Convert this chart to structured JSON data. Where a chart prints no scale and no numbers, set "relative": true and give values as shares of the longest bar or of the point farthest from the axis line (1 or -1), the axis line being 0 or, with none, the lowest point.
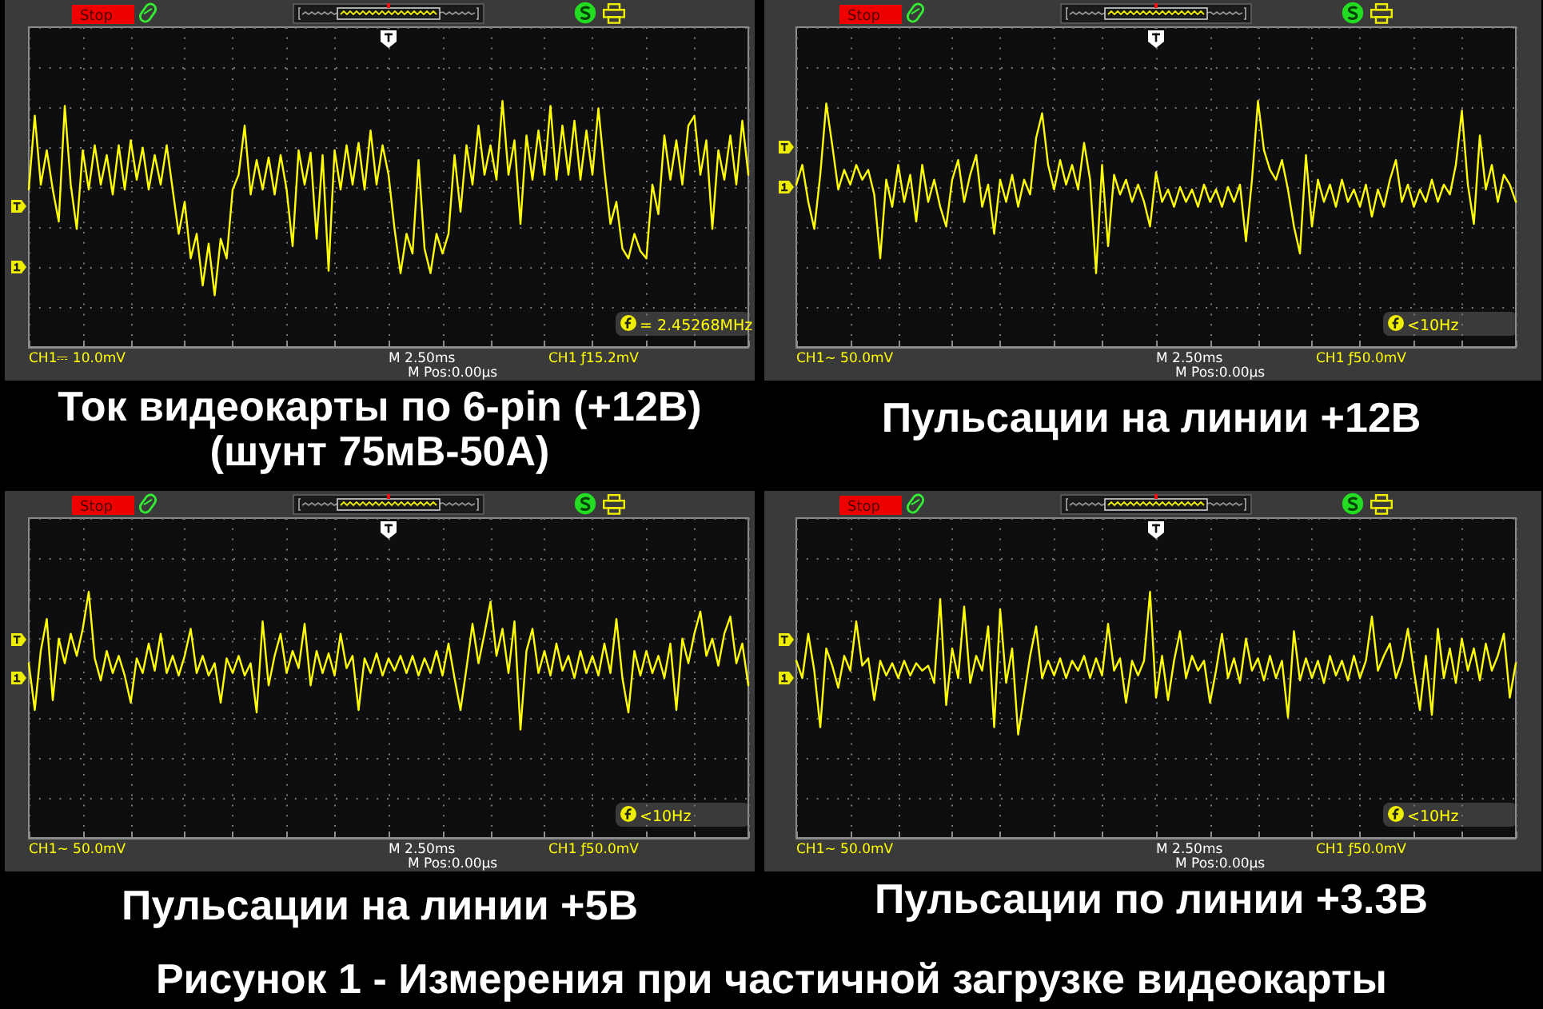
{
  "chart_data": [
    {
      "type": "line",
      "title": "Ток видеокарты по 6-pin (+12В)",
      "subtitle": "(шунт 75мВ-50А)",
      "relative": true,
      "grid": true,
      "marker": "none",
      "line_style": "solid",
      "categories": [
        null,
        null,
        null,
        null,
        null,
        null,
        null,
        null,
        null,
        null,
        null,
        null,
        null,
        null,
        null,
        null,
        null,
        null,
        null,
        null,
        null,
        null,
        null,
        null,
        null,
        null,
        null,
        null,
        null,
        null,
        null,
        null,
        null,
        null,
        null,
        null,
        null,
        null,
        null,
        null,
        null,
        null,
        null,
        null,
        null,
        null,
        null,
        null,
        null,
        null,
        null,
        null,
        null,
        null,
        null,
        null,
        null,
        null,
        null,
        null,
        null,
        null,
        null,
        null,
        null,
        null,
        null,
        null,
        null,
        null,
        null,
        null,
        null,
        null,
        null,
        null,
        null,
        null,
        null,
        null,
        null,
        null,
        null,
        null,
        null,
        null,
        null,
        null,
        null,
        null,
        null,
        null,
        null,
        null,
        null,
        null,
        null,
        null,
        null,
        null,
        null,
        null,
        null,
        null,
        null,
        null,
        null,
        null,
        null,
        null,
        null,
        null,
        null,
        null,
        null,
        null,
        null,
        null,
        null,
        null,
        null
      ],
      "series": [
        {
          "color": "#ffff00",
          "values": [
            0.64,
            0.94,
            0.66,
            0.8,
            0.64,
            0.51,
            0.98,
            0.66,
            0.48,
            0.8,
            0.64,
            0.82,
            0.66,
            0.78,
            0.62,
            0.82,
            0.64,
            0.84,
            0.68,
            0.81,
            0.64,
            0.78,
            0.66,
            0.82,
            0.64,
            0.46,
            0.59,
            0.36,
            0.46,
            0.25,
            0.42,
            0.21,
            0.44,
            0.36,
            0.64,
            0.7,
            0.9,
            0.62,
            0.76,
            0.64,
            0.77,
            0.62,
            0.78,
            0.64,
            0.41,
            0.8,
            0.66,
            0.79,
            0.44,
            0.78,
            0.31,
            0.8,
            0.64,
            0.82,
            0.66,
            0.83,
            0.64,
            0.88,
            0.66,
            0.82,
            0.7,
            0.48,
            0.3,
            0.46,
            0.38,
            0.76,
            0.4,
            0.3,
            0.46,
            0.38,
            0.46,
            0.78,
            0.55,
            0.82,
            0.66,
            0.9,
            0.7,
            0.82,
            0.68,
            1,
            0.7,
            0.84,
            0.5,
            0.86,
            0.68,
            0.88,
            0.7,
            0.98,
            0.68,
            0.9,
            0.7,
            0.92,
            0.68,
            0.88,
            0.7,
            0.97,
            0.72,
            0.5,
            0.59,
            0.4,
            0.36,
            0.46,
            0.39,
            0.36,
            0.66,
            0.54,
            0.86,
            0.68,
            0.84,
            0.66,
            0.9,
            0.94,
            0.7,
            0.84,
            0.48,
            0.8,
            0.68,
            0.86,
            0.66,
            0.92,
            0.7
          ]
        }
      ],
      "annotations": [
        "Stop",
        "CH1⎓ 10.0mV",
        "M 2.50ms",
        "CH1 ƒ15.2mV",
        "M Pos:0.00µs",
        "= 2.45268MHz"
      ]
    },
    {
      "type": "line",
      "title": "Пульсации на линии +12В",
      "relative": true,
      "grid": true,
      "marker": "none",
      "line_style": "solid",
      "categories": [
        null,
        null,
        null,
        null,
        null,
        null,
        null,
        null,
        null,
        null,
        null,
        null,
        null,
        null,
        null,
        null,
        null,
        null,
        null,
        null,
        null,
        null,
        null,
        null,
        null,
        null,
        null,
        null,
        null,
        null,
        null,
        null,
        null,
        null,
        null,
        null,
        null,
        null,
        null,
        null,
        null,
        null,
        null,
        null,
        null,
        null,
        null,
        null,
        null,
        null,
        null,
        null,
        null,
        null,
        null,
        null,
        null,
        null,
        null,
        null,
        null,
        null,
        null,
        null,
        null,
        null,
        null,
        null,
        null,
        null,
        null,
        null,
        null,
        null,
        null,
        null,
        null,
        null,
        null,
        null,
        null,
        null,
        null,
        null,
        null,
        null,
        null,
        null,
        null,
        null,
        null,
        null,
        null,
        null,
        null,
        null,
        null,
        null,
        null,
        null,
        null,
        null,
        null,
        null,
        null,
        null,
        null,
        null,
        null,
        null,
        null,
        null,
        null,
        null,
        null,
        null,
        null,
        null,
        null,
        null,
        null
      ],
      "series": [
        {
          "color": "#ffff00",
          "values": [
            0.66,
            0.74,
            0.59,
            0.48,
            0.7,
            0.99,
            0.82,
            0.64,
            0.72,
            0.66,
            0.74,
            0.68,
            0.72,
            0.62,
            0.36,
            0.68,
            0.57,
            0.74,
            0.59,
            0.7,
            0.51,
            0.74,
            0.59,
            0.68,
            0.57,
            0.49,
            0.68,
            0.76,
            0.59,
            0.7,
            0.78,
            0.57,
            0.66,
            0.46,
            0.68,
            0.59,
            0.7,
            0.57,
            0.68,
            0.62,
            0.85,
            0.95,
            0.74,
            0.64,
            0.76,
            0.66,
            0.74,
            0.64,
            0.83,
            0.68,
            0.3,
            0.74,
            0.41,
            0.7,
            0.62,
            0.68,
            0.59,
            0.66,
            0.59,
            0.49,
            0.71,
            0.59,
            0.64,
            0.57,
            0.65,
            0.59,
            0.64,
            0.57,
            0.66,
            0.59,
            0.64,
            0.57,
            0.65,
            0.59,
            0.66,
            0.43,
            0.68,
            1,
            0.8,
            0.72,
            0.68,
            0.76,
            0.64,
            0.49,
            0.38,
            0.78,
            0.49,
            0.68,
            0.59,
            0.66,
            0.57,
            0.68,
            0.59,
            0.64,
            0.57,
            0.66,
            0.53,
            0.64,
            0.57,
            0.68,
            0.76,
            0.59,
            0.66,
            0.57,
            0.64,
            0.59,
            0.68,
            0.59,
            0.66,
            0.62,
            0.74,
            0.96,
            0.66,
            0.5,
            0.86,
            0.64,
            0.74,
            0.59,
            0.7,
            0.66,
            0.59
          ]
        }
      ],
      "annotations": [
        "Stop",
        "CH1~ 50.0mV",
        "M 2.50ms",
        "CH1 ƒ50.0mV",
        "M Pos:0.00µs",
        "<10Hz"
      ]
    },
    {
      "type": "line",
      "title": "Пульсации на линии +5В",
      "relative": true,
      "grid": true,
      "marker": "none",
      "line_style": "solid",
      "categories": [
        null,
        null,
        null,
        null,
        null,
        null,
        null,
        null,
        null,
        null,
        null,
        null,
        null,
        null,
        null,
        null,
        null,
        null,
        null,
        null,
        null,
        null,
        null,
        null,
        null,
        null,
        null,
        null,
        null,
        null,
        null,
        null,
        null,
        null,
        null,
        null,
        null,
        null,
        null,
        null,
        null,
        null,
        null,
        null,
        null,
        null,
        null,
        null,
        null,
        null,
        null,
        null,
        null,
        null,
        null,
        null,
        null,
        null,
        null,
        null,
        null,
        null,
        null,
        null,
        null,
        null,
        null,
        null,
        null,
        null,
        null,
        null,
        null,
        null,
        null,
        null,
        null,
        null,
        null,
        null,
        null,
        null,
        null,
        null,
        null,
        null,
        null,
        null,
        null,
        null,
        null,
        null,
        null,
        null,
        null,
        null,
        null,
        null,
        null,
        null,
        null,
        null,
        null,
        null,
        null,
        null,
        null,
        null,
        null,
        null,
        null,
        null,
        null,
        null,
        null,
        null,
        null,
        null,
        null,
        null,
        null
      ],
      "series": [
        {
          "color": "#ffff00",
          "values": [
            0.71,
            0.52,
            0.76,
            0.89,
            0.56,
            0.81,
            0.71,
            0.83,
            0.74,
            0.85,
            1,
            0.73,
            0.64,
            0.76,
            0.67,
            0.74,
            0.66,
            0.55,
            0.73,
            0.67,
            0.79,
            0.68,
            0.83,
            0.67,
            0.74,
            0.66,
            0.74,
            0.85,
            0.67,
            0.74,
            0.66,
            0.71,
            0.55,
            0.73,
            0.67,
            0.74,
            0.66,
            0.71,
            0.51,
            0.88,
            0.62,
            0.74,
            0.83,
            0.67,
            0.76,
            0.69,
            0.87,
            0.62,
            0.76,
            0.67,
            0.75,
            0.66,
            0.83,
            0.69,
            0.74,
            0.52,
            0.73,
            0.67,
            0.75,
            0.66,
            0.73,
            0.68,
            0.74,
            0.67,
            0.74,
            0.66,
            0.73,
            0.67,
            0.76,
            0.66,
            0.79,
            0.65,
            0.52,
            0.69,
            0.87,
            0.71,
            0.83,
            0.96,
            0.74,
            0.85,
            0.67,
            0.88,
            0.44,
            0.76,
            0.85,
            0.67,
            0.76,
            0.66,
            0.79,
            0.68,
            0.74,
            0.65,
            0.76,
            0.67,
            0.74,
            0.66,
            0.79,
            0.67,
            0.89,
            0.65,
            0.51,
            0.76,
            0.66,
            0.76,
            0.67,
            0.74,
            0.65,
            0.79,
            0.52,
            0.81,
            0.71,
            0.83,
            0.92,
            0.74,
            0.81,
            0.7,
            0.83,
            0.9,
            0.71,
            0.79,
            0.62
          ]
        }
      ],
      "annotations": [
        "Stop",
        "CH1~ 50.0mV",
        "M 2.50ms",
        "CH1 ƒ50.0mV",
        "M Pos:0.00µs",
        "<10Hz"
      ]
    },
    {
      "type": "line",
      "title": "Пульсации по линии +3.3В",
      "relative": true,
      "grid": true,
      "marker": "none",
      "line_style": "solid",
      "categories": [
        null,
        null,
        null,
        null,
        null,
        null,
        null,
        null,
        null,
        null,
        null,
        null,
        null,
        null,
        null,
        null,
        null,
        null,
        null,
        null,
        null,
        null,
        null,
        null,
        null,
        null,
        null,
        null,
        null,
        null,
        null,
        null,
        null,
        null,
        null,
        null,
        null,
        null,
        null,
        null,
        null,
        null,
        null,
        null,
        null,
        null,
        null,
        null,
        null,
        null,
        null,
        null,
        null,
        null,
        null,
        null,
        null,
        null,
        null,
        null,
        null,
        null,
        null,
        null,
        null,
        null,
        null,
        null,
        null,
        null,
        null,
        null,
        null,
        null,
        null,
        null,
        null,
        null,
        null,
        null,
        null,
        null,
        null,
        null,
        null,
        null,
        null,
        null,
        null,
        null,
        null,
        null,
        null,
        null,
        null,
        null,
        null,
        null,
        null,
        null,
        null,
        null,
        null,
        null,
        null,
        null,
        null,
        null,
        null,
        null,
        null,
        null,
        null,
        null,
        null,
        null,
        null,
        null,
        null,
        null,
        null
      ],
      "series": [
        {
          "color": "#ffff00",
          "values": [
            0.72,
            0.65,
            0.83,
            0.68,
            0.45,
            0.77,
            0.7,
            0.61,
            0.74,
            0.68,
            0.88,
            0.7,
            0.73,
            0.56,
            0.72,
            0.66,
            0.71,
            0.65,
            0.72,
            0.66,
            0.71,
            0.68,
            0.7,
            0.63,
            0.97,
            0.54,
            0.77,
            0.65,
            0.94,
            0.63,
            0.74,
            0.68,
            0.86,
            0.45,
            0.93,
            0.63,
            0.77,
            0.42,
            0.58,
            0.74,
            0.86,
            0.65,
            0.72,
            0.66,
            0.73,
            0.65,
            0.72,
            0.68,
            0.74,
            0.65,
            0.73,
            0.66,
            0.87,
            0.68,
            0.73,
            0.55,
            0.72,
            0.66,
            0.72,
            1,
            0.57,
            0.74,
            0.56,
            0.72,
            0.84,
            0.65,
            0.74,
            0.68,
            0.72,
            0.55,
            0.68,
            0.83,
            0.65,
            0.73,
            0.63,
            0.81,
            0.68,
            0.73,
            0.64,
            0.74,
            0.65,
            0.72,
            0.49,
            0.84,
            0.64,
            0.73,
            0.65,
            0.72,
            0.63,
            0.74,
            0.66,
            0.72,
            0.64,
            0.74,
            0.65,
            0.72,
            0.9,
            0.68,
            0.74,
            0.79,
            0.65,
            0.72,
            0.85,
            0.68,
            0.52,
            0.74,
            0.5,
            0.85,
            0.65,
            0.77,
            0.63,
            0.81,
            0.68,
            0.77,
            0.64,
            0.79,
            0.68,
            0.74,
            0.83,
            0.57,
            0.71
          ]
        }
      ],
      "annotations": [
        "Stop",
        "CH1~ 50.0mV",
        "M 2.50ms",
        "CH1 ƒ50.0mV",
        "M Pos:0.00µs",
        "<10Hz"
      ]
    },
    {
      "type": "other",
      "title": "Рисунок 1 - Измерения при частичной загрузке видеокарты"
    }
  ]
}
